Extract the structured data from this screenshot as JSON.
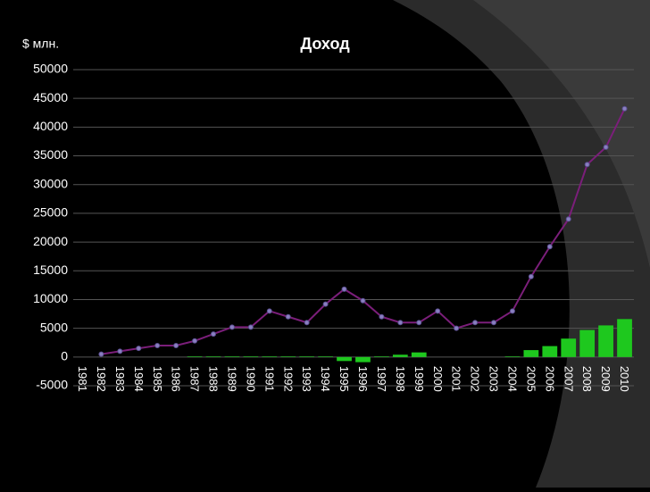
{
  "chart_data": {
    "type": "bar-line",
    "title": "Доход",
    "y_label": "$ млн.",
    "categories": [
      "1981",
      "1982",
      "1983",
      "1984",
      "1985",
      "1986",
      "1987",
      "1988",
      "1989",
      "1990",
      "1991",
      "1992",
      "1993",
      "1994",
      "1995",
      "1996",
      "1997",
      "1998",
      "1999",
      "2000",
      "2001",
      "2002",
      "2003",
      "2004",
      "2005",
      "2006",
      "2007",
      "2008",
      "2009",
      "2010"
    ],
    "series": [
      {
        "type": "line",
        "color": "#7b1e7a",
        "values": [
          null,
          500,
          1000,
          1500,
          2000,
          2000,
          2800,
          4000,
          5200,
          5200,
          8000,
          7000,
          6000,
          9200,
          11800,
          9800,
          7000,
          6000,
          6000,
          8000,
          5000,
          6000,
          6000,
          8000,
          14000,
          19200,
          24000,
          33500,
          36500,
          43200
        ]
      },
      {
        "type": "bar",
        "color": "#1ec81e",
        "values": [
          0,
          0,
          0,
          0,
          0,
          0,
          100,
          100,
          100,
          100,
          100,
          100,
          100,
          100,
          -700,
          -900,
          100,
          400,
          800,
          0,
          0,
          0,
          0,
          100,
          1200,
          1900,
          3200,
          4700,
          5500,
          6600
        ]
      }
    ],
    "ylim": [
      -5000,
      50000
    ],
    "yticks": [
      -5000,
      0,
      5000,
      10000,
      15000,
      20000,
      25000,
      30000,
      35000,
      40000,
      45000,
      50000
    ],
    "grid": true
  }
}
